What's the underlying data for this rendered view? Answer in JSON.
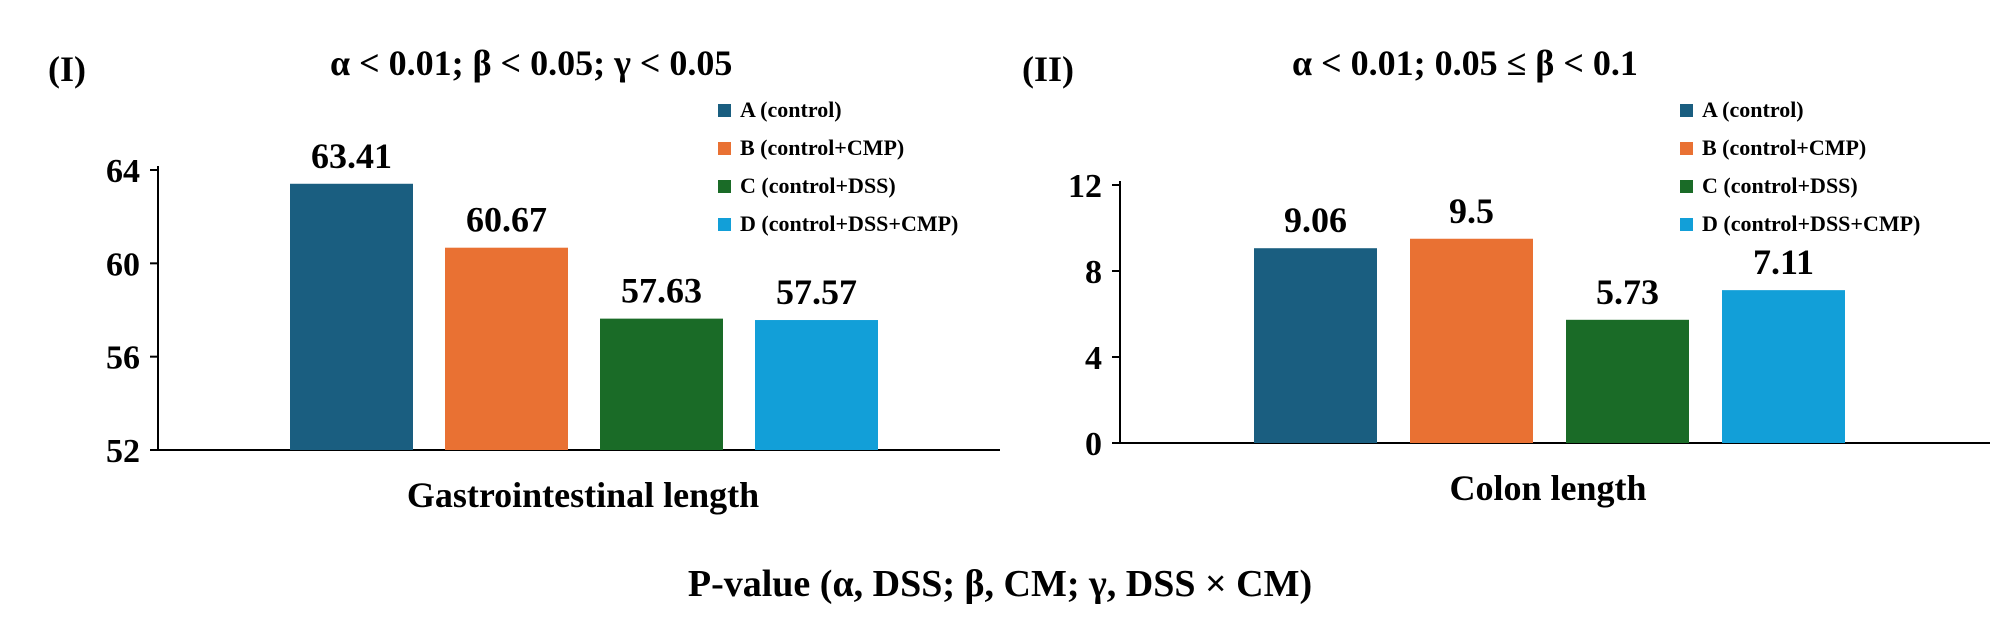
{
  "footer": "P-value (α, DSS; β, CM; γ, DSS × CM)",
  "colors": {
    "A": "#1a5e80",
    "B": "#e97133",
    "C": "#1a6b27",
    "D": "#129fd8"
  },
  "legend": [
    {
      "key": "A",
      "label": "A (control)"
    },
    {
      "key": "B",
      "label": "B (control+CMP)"
    },
    {
      "key": "C",
      "label": "C (control+DSS)"
    },
    {
      "key": "D",
      "label": "D (control+DSS+CMP)"
    }
  ],
  "chart_data": [
    {
      "type": "bar",
      "panel_label": "(I)",
      "title": "α < 0.01; β < 0.05; γ < 0.05",
      "xlabel": "Gastrointestinal length",
      "ylabel": "",
      "categories": [
        "A",
        "B",
        "C",
        "D"
      ],
      "values": [
        63.41,
        60.67,
        57.63,
        57.57
      ],
      "data_labels": [
        "63.41",
        "60.67",
        "57.63",
        "57.57"
      ],
      "ylim": [
        52,
        64
      ],
      "yticks": [
        52,
        56,
        60,
        64
      ],
      "grid": false,
      "legend_position": "top-right"
    },
    {
      "type": "bar",
      "panel_label": "(II)",
      "title": "α < 0.01; 0.05 ≤ β < 0.1",
      "xlabel": "Colon length",
      "ylabel": "",
      "categories": [
        "A",
        "B",
        "C",
        "D"
      ],
      "values": [
        9.06,
        9.5,
        5.73,
        7.11
      ],
      "data_labels": [
        "9.06",
        "9.5",
        "5.73",
        "7.11"
      ],
      "ylim": [
        0,
        12
      ],
      "yticks": [
        0,
        4,
        8,
        12
      ],
      "grid": false,
      "legend_position": "top-right"
    }
  ]
}
